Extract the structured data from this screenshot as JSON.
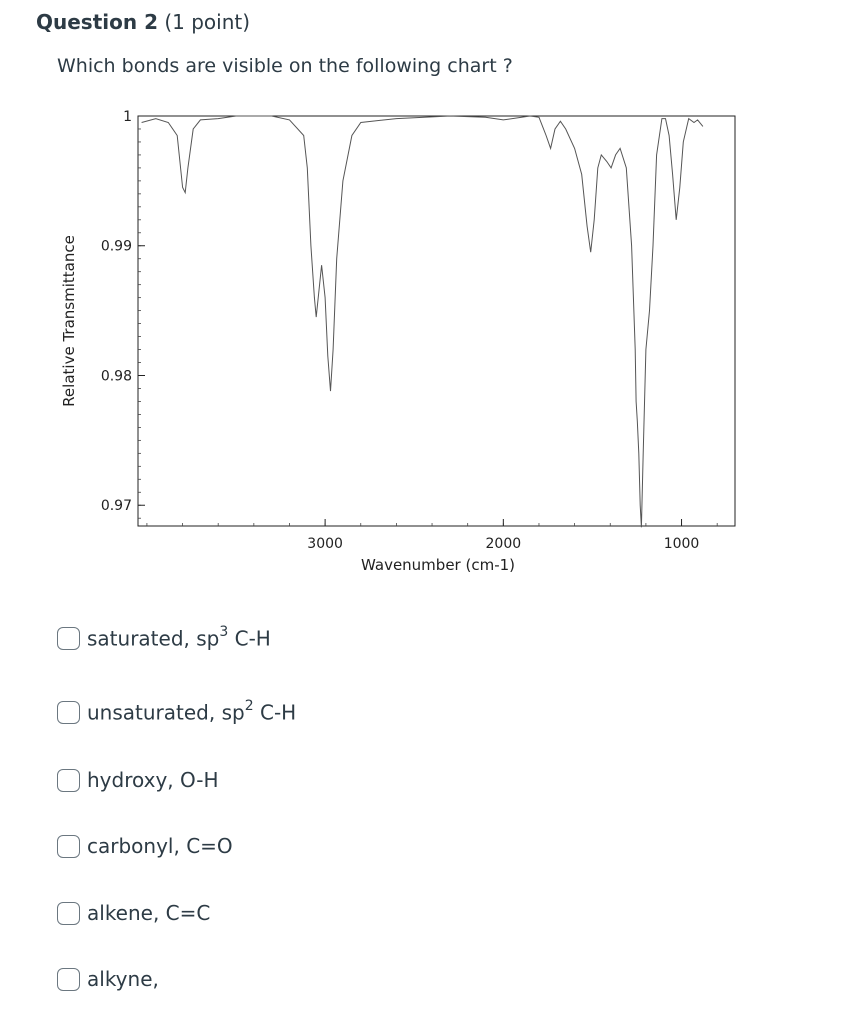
{
  "question": {
    "title": "Question 2",
    "points": "(1 point)",
    "prompt": "Which bonds are visible on the following chart ?"
  },
  "chart_data": {
    "type": "line",
    "xlabel": "Wavenumber (cm-1)",
    "ylabel": "Relative Transmittance",
    "x_reversed": true,
    "xlim": [
      4050,
      700
    ],
    "ylim": [
      0.9684,
      1.0
    ],
    "x_ticks": [
      3000,
      2000,
      1000
    ],
    "y_ticks": [
      {
        "value": 1.0,
        "label": "1"
      },
      {
        "value": 0.99,
        "label": "0.99"
      },
      {
        "value": 0.98,
        "label": "0.98"
      },
      {
        "value": 0.97,
        "label": "0.97"
      }
    ],
    "series": [
      {
        "name": "",
        "points": [
          [
            4030,
            0.9995
          ],
          [
            3950,
            0.9998
          ],
          [
            3880,
            0.9995
          ],
          [
            3830,
            0.9985
          ],
          [
            3800,
            0.9945
          ],
          [
            3785,
            0.9941
          ],
          [
            3770,
            0.996
          ],
          [
            3740,
            0.999
          ],
          [
            3700,
            0.9997
          ],
          [
            3600,
            0.9998
          ],
          [
            3500,
            1.0
          ],
          [
            3300,
            1.0
          ],
          [
            3200,
            0.9997
          ],
          [
            3120,
            0.9985
          ],
          [
            3100,
            0.996
          ],
          [
            3080,
            0.99
          ],
          [
            3060,
            0.986
          ],
          [
            3050,
            0.9845
          ],
          [
            3035,
            0.9865
          ],
          [
            3020,
            0.9885
          ],
          [
            3000,
            0.986
          ],
          [
            2985,
            0.9815
          ],
          [
            2970,
            0.9788
          ],
          [
            2955,
            0.982
          ],
          [
            2935,
            0.989
          ],
          [
            2900,
            0.995
          ],
          [
            2850,
            0.9985
          ],
          [
            2800,
            0.9995
          ],
          [
            2600,
            0.9998
          ],
          [
            2300,
            1.0
          ],
          [
            2100,
            0.9999
          ],
          [
            2000,
            0.9997
          ],
          [
            1850,
            1.0
          ],
          [
            1800,
            0.9999
          ],
          [
            1760,
            0.9985
          ],
          [
            1735,
            0.9975
          ],
          [
            1710,
            0.999
          ],
          [
            1680,
            0.9996
          ],
          [
            1650,
            0.999
          ],
          [
            1600,
            0.9975
          ],
          [
            1560,
            0.9955
          ],
          [
            1530,
            0.9915
          ],
          [
            1510,
            0.9895
          ],
          [
            1490,
            0.992
          ],
          [
            1470,
            0.996
          ],
          [
            1450,
            0.997
          ],
          [
            1420,
            0.9965
          ],
          [
            1395,
            0.996
          ],
          [
            1370,
            0.997
          ],
          [
            1345,
            0.9975
          ],
          [
            1310,
            0.996
          ],
          [
            1280,
            0.99
          ],
          [
            1260,
            0.982
          ],
          [
            1255,
            0.978
          ],
          [
            1248,
            0.9765
          ],
          [
            1240,
            0.974
          ],
          [
            1232,
            0.97
          ],
          [
            1225,
            0.9683
          ],
          [
            1215,
            0.974
          ],
          [
            1200,
            0.982
          ],
          [
            1180,
            0.985
          ],
          [
            1160,
            0.99
          ],
          [
            1140,
            0.997
          ],
          [
            1110,
            0.9998
          ],
          [
            1090,
            0.9998
          ],
          [
            1070,
            0.9985
          ],
          [
            1050,
            0.9955
          ],
          [
            1030,
            0.992
          ],
          [
            1010,
            0.9945
          ],
          [
            990,
            0.998
          ],
          [
            960,
            0.9998
          ],
          [
            930,
            0.9995
          ],
          [
            910,
            0.9997
          ],
          [
            880,
            0.9992
          ]
        ]
      }
    ]
  },
  "options": [
    {
      "label": "saturated, sp",
      "sup": "3",
      "suffix": " C-H"
    },
    {
      "label": "unsaturated, sp",
      "sup": "2",
      "suffix": " C-H"
    },
    {
      "label": "hydroxy, O-H",
      "sup": "",
      "suffix": ""
    },
    {
      "label": "carbonyl, C=O",
      "sup": "",
      "suffix": ""
    },
    {
      "label": "alkene, C=C",
      "sup": "",
      "suffix": ""
    },
    {
      "label": "alkyne,",
      "sup": "",
      "suffix": ""
    }
  ]
}
